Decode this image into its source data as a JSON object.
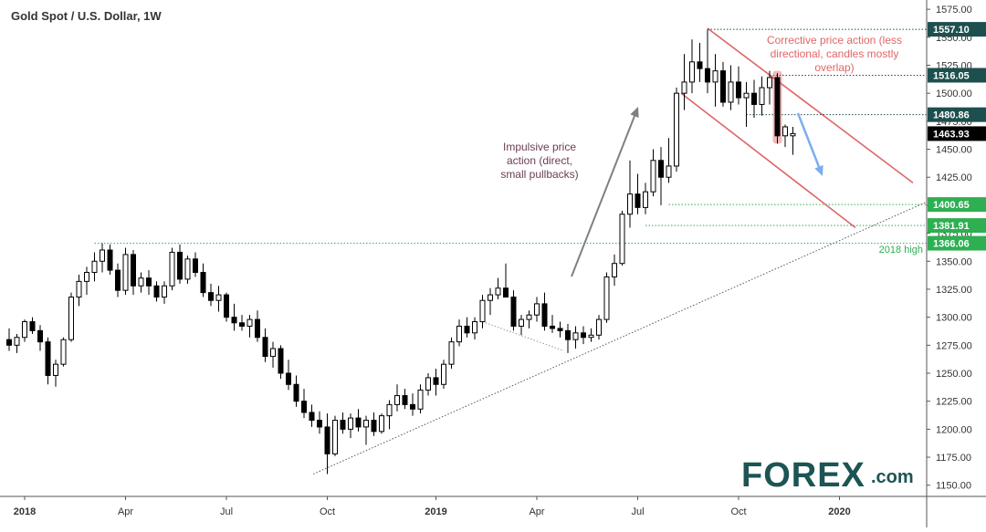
{
  "chart_title": "Gold Spot / U.S. Dollar, 1W",
  "chart_data": {
    "type": "candlestick",
    "title": "Gold Spot / U.S. Dollar, 1W",
    "timeframe": "1W",
    "y_range": [
      1140,
      1580
    ],
    "y_ticks": [
      1150,
      1175,
      1200,
      1225,
      1250,
      1275,
      1300,
      1325,
      1350,
      1375,
      1400,
      1425,
      1450,
      1475,
      1500,
      1525,
      1550,
      1575
    ],
    "y_tick_labels": [
      "1150.00",
      "1175.00",
      "1200.00",
      "1225.00",
      "1250.00",
      "1275.00",
      "1300.00",
      "1325.00",
      "1350.00",
      "1375.00",
      "1400.00",
      "1425.00",
      "1450.00",
      "1475.00",
      "1500.00",
      "1525.00",
      "1550.00",
      "1575.00"
    ],
    "x_tick_labels": [
      "2018",
      "Apr",
      "Jul",
      "Oct",
      "2019",
      "Apr",
      "Jul",
      "Oct",
      "2020"
    ],
    "x_tick_index": [
      2,
      15,
      28,
      41,
      55,
      68,
      81,
      94,
      107
    ],
    "candles": [
      [
        1280,
        1290,
        1270,
        1275
      ],
      [
        1275,
        1285,
        1268,
        1282
      ],
      [
        1282,
        1298,
        1278,
        1296
      ],
      [
        1296,
        1300,
        1285,
        1288
      ],
      [
        1288,
        1293,
        1270,
        1278
      ],
      [
        1278,
        1282,
        1240,
        1248
      ],
      [
        1248,
        1262,
        1238,
        1258
      ],
      [
        1258,
        1282,
        1256,
        1280
      ],
      [
        1280,
        1322,
        1278,
        1318
      ],
      [
        1318,
        1338,
        1310,
        1332
      ],
      [
        1332,
        1345,
        1320,
        1340
      ],
      [
        1340,
        1358,
        1332,
        1350
      ],
      [
        1350,
        1366,
        1340,
        1360
      ],
      [
        1360,
        1365,
        1338,
        1342
      ],
      [
        1342,
        1348,
        1318,
        1324
      ],
      [
        1324,
        1362,
        1320,
        1356
      ],
      [
        1356,
        1360,
        1320,
        1328
      ],
      [
        1328,
        1340,
        1322,
        1335
      ],
      [
        1335,
        1342,
        1320,
        1328
      ],
      [
        1328,
        1332,
        1314,
        1318
      ],
      [
        1318,
        1332,
        1312,
        1328
      ],
      [
        1328,
        1362,
        1324,
        1358
      ],
      [
        1358,
        1365,
        1330,
        1334
      ],
      [
        1334,
        1355,
        1330,
        1352
      ],
      [
        1352,
        1358,
        1336,
        1340
      ],
      [
        1340,
        1348,
        1318,
        1322
      ],
      [
        1322,
        1330,
        1310,
        1315
      ],
      [
        1315,
        1328,
        1305,
        1320
      ],
      [
        1320,
        1322,
        1296,
        1300
      ],
      [
        1300,
        1312,
        1288,
        1295
      ],
      [
        1295,
        1302,
        1288,
        1292
      ],
      [
        1292,
        1302,
        1282,
        1298
      ],
      [
        1298,
        1306,
        1278,
        1282
      ],
      [
        1282,
        1290,
        1260,
        1265
      ],
      [
        1265,
        1278,
        1255,
        1272
      ],
      [
        1272,
        1275,
        1245,
        1250
      ],
      [
        1250,
        1262,
        1235,
        1240
      ],
      [
        1240,
        1248,
        1220,
        1225
      ],
      [
        1225,
        1236,
        1210,
        1215
      ],
      [
        1215,
        1222,
        1202,
        1208
      ],
      [
        1208,
        1216,
        1196,
        1202
      ],
      [
        1202,
        1214,
        1160,
        1178
      ],
      [
        1178,
        1212,
        1176,
        1208
      ],
      [
        1208,
        1215,
        1196,
        1200
      ],
      [
        1200,
        1214,
        1192,
        1210
      ],
      [
        1210,
        1218,
        1198,
        1202
      ],
      [
        1202,
        1212,
        1186,
        1208
      ],
      [
        1208,
        1215,
        1194,
        1198
      ],
      [
        1198,
        1214,
        1196,
        1212
      ],
      [
        1212,
        1226,
        1200,
        1222
      ],
      [
        1222,
        1240,
        1216,
        1230
      ],
      [
        1230,
        1236,
        1218,
        1222
      ],
      [
        1222,
        1232,
        1212,
        1218
      ],
      [
        1218,
        1240,
        1214,
        1235
      ],
      [
        1235,
        1250,
        1230,
        1246
      ],
      [
        1246,
        1254,
        1230,
        1240
      ],
      [
        1240,
        1262,
        1236,
        1258
      ],
      [
        1258,
        1282,
        1254,
        1278
      ],
      [
        1278,
        1298,
        1274,
        1292
      ],
      [
        1292,
        1300,
        1282,
        1286
      ],
      [
        1286,
        1300,
        1280,
        1296
      ],
      [
        1296,
        1320,
        1290,
        1315
      ],
      [
        1315,
        1326,
        1302,
        1320
      ],
      [
        1320,
        1335,
        1316,
        1326
      ],
      [
        1326,
        1348,
        1320,
        1318
      ],
      [
        1318,
        1324,
        1288,
        1292
      ],
      [
        1292,
        1302,
        1284,
        1298
      ],
      [
        1298,
        1306,
        1290,
        1302
      ],
      [
        1302,
        1318,
        1296,
        1312
      ],
      [
        1312,
        1322,
        1288,
        1292
      ],
      [
        1292,
        1302,
        1286,
        1290
      ],
      [
        1290,
        1296,
        1282,
        1288
      ],
      [
        1288,
        1294,
        1268,
        1280
      ],
      [
        1280,
        1292,
        1272,
        1286
      ],
      [
        1286,
        1292,
        1276,
        1282
      ],
      [
        1282,
        1290,
        1278,
        1284
      ],
      [
        1284,
        1302,
        1280,
        1298
      ],
      [
        1298,
        1340,
        1295,
        1336
      ],
      [
        1336,
        1356,
        1328,
        1348
      ],
      [
        1348,
        1395,
        1346,
        1392
      ],
      [
        1392,
        1440,
        1380,
        1410
      ],
      [
        1410,
        1428,
        1392,
        1398
      ],
      [
        1398,
        1420,
        1392,
        1412
      ],
      [
        1412,
        1450,
        1408,
        1440
      ],
      [
        1440,
        1452,
        1400,
        1425
      ],
      [
        1425,
        1460,
        1420,
        1435
      ],
      [
        1435,
        1505,
        1430,
        1500
      ],
      [
        1500,
        1535,
        1485,
        1510
      ],
      [
        1510,
        1548,
        1500,
        1528
      ],
      [
        1528,
        1545,
        1510,
        1522
      ],
      [
        1522,
        1557,
        1500,
        1510
      ],
      [
        1510,
        1535,
        1488,
        1520
      ],
      [
        1520,
        1528,
        1488,
        1492
      ],
      [
        1492,
        1525,
        1485,
        1510
      ],
      [
        1510,
        1524,
        1490,
        1496
      ],
      [
        1496,
        1510,
        1470,
        1500
      ],
      [
        1500,
        1512,
        1478,
        1490
      ],
      [
        1490,
        1515,
        1480,
        1505
      ],
      [
        1505,
        1520,
        1490,
        1514
      ],
      [
        1514,
        1518,
        1455,
        1462
      ],
      [
        1462,
        1472,
        1452,
        1470
      ],
      [
        1462,
        1470,
        1445,
        1464
      ]
    ],
    "levels": [
      {
        "label": "1557.10",
        "value": 1557.1,
        "color": "#1e4f4f"
      },
      {
        "label": "1516.05",
        "value": 1516.05,
        "color": "#1e4f4f"
      },
      {
        "label": "1480.86",
        "value": 1480.86,
        "color": "#1e4f4f"
      },
      {
        "label": "1463.93",
        "value": 1463.93,
        "color": "#000000"
      },
      {
        "label": "1400.65",
        "value": 1400.65,
        "color": "#2eaf52"
      },
      {
        "label": "1381.91",
        "value": 1381.91,
        "color": "#2eaf52"
      },
      {
        "label": "1366.06",
        "value": 1366.06,
        "color": "#2eaf52"
      }
    ],
    "annotations": {
      "impulsive_lines": [
        "Impulsive price",
        "action (direct,",
        "small pullbacks)"
      ],
      "corrective_lines": [
        "Corrective price action (less",
        "directional, candles mostly",
        "overlap)"
      ],
      "high_2018": "2018 high"
    },
    "colors": {
      "bullish": "#ffffff",
      "bearish": "#000000",
      "channel": "#e06666",
      "support": "#2eaf52",
      "resistance": "#1e4f4f",
      "arrow_gray": "#808080",
      "arrow_blue": "#7aaef0"
    }
  },
  "watermark": {
    "brand": "FOREX",
    "suffix": ".com"
  }
}
